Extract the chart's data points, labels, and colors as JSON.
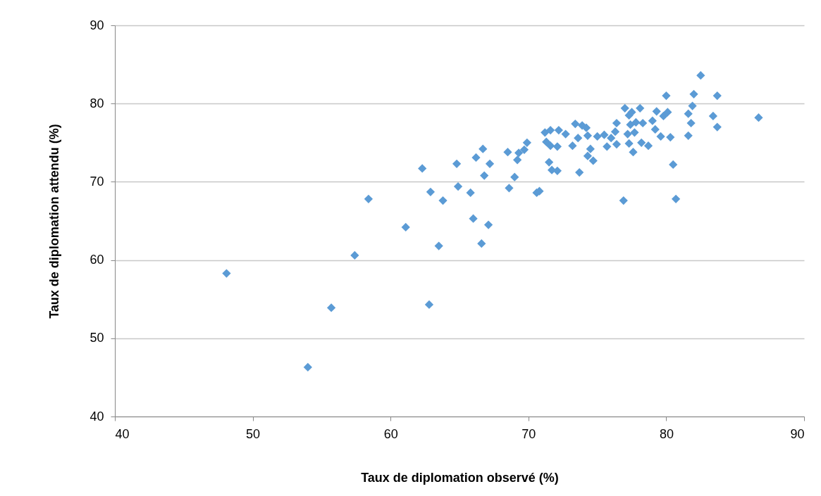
{
  "chart_data": {
    "type": "scatter",
    "xlabel": "Taux de diplomation observé (%)",
    "ylabel": "Taux de diplomation attendu  (%)",
    "xlim": [
      40,
      90
    ],
    "xticks": [
      40,
      50,
      60,
      70,
      80,
      90
    ],
    "ylim": [
      40,
      90
    ],
    "yticks": [
      40,
      50,
      60,
      70,
      80,
      90
    ],
    "grid": "y",
    "marker": "diamond",
    "series": [
      {
        "color": "#5b9bd5",
        "x": [
          48.1,
          54.0,
          55.7,
          57.4,
          58.4,
          61.1,
          62.3,
          62.8,
          62.9,
          63.5,
          63.8,
          64.8,
          64.9,
          65.8,
          66.0,
          66.2,
          66.6,
          66.7,
          66.8,
          67.1,
          67.2,
          68.5,
          68.6,
          69.0,
          69.2,
          69.3,
          69.7,
          69.9,
          70.6,
          70.8,
          71.2,
          71.3,
          71.5,
          71.6,
          71.6,
          71.7,
          72.1,
          72.1,
          72.2,
          72.7,
          73.2,
          73.4,
          73.6,
          73.7,
          73.9,
          74.2,
          74.3,
          74.3,
          74.5,
          74.7,
          75.0,
          75.5,
          75.7,
          76.0,
          76.3,
          76.4,
          76.4,
          76.9,
          77.0,
          77.2,
          77.3,
          77.3,
          77.4,
          77.5,
          77.6,
          77.7,
          77.8,
          78.1,
          78.2,
          78.3,
          78.7,
          79.0,
          79.2,
          79.3,
          79.6,
          79.8,
          80.0,
          80.1,
          80.3,
          80.5,
          80.7,
          81.6,
          81.6,
          81.8,
          81.9,
          82.0,
          82.5,
          83.4,
          83.7,
          83.7,
          86.7
        ],
        "values": [
          58.3,
          46.3,
          53.9,
          60.6,
          67.8,
          64.2,
          71.7,
          54.3,
          68.7,
          61.8,
          67.6,
          72.3,
          69.4,
          68.6,
          65.3,
          73.1,
          62.1,
          74.2,
          70.8,
          64.5,
          72.3,
          73.8,
          69.2,
          70.6,
          72.8,
          73.7,
          74.1,
          75.0,
          68.6,
          68.8,
          76.3,
          75.1,
          72.5,
          74.6,
          76.6,
          71.5,
          71.4,
          74.5,
          76.6,
          76.1,
          74.6,
          77.4,
          75.6,
          71.2,
          77.2,
          76.9,
          73.3,
          75.9,
          74.2,
          72.7,
          75.8,
          76.0,
          74.5,
          75.6,
          76.4,
          74.8,
          77.5,
          67.6,
          79.4,
          76.1,
          74.9,
          78.5,
          77.3,
          78.9,
          73.8,
          76.3,
          77.6,
          79.4,
          75.0,
          77.5,
          74.6,
          77.8,
          76.7,
          79.0,
          75.8,
          78.4,
          81.0,
          78.9,
          75.7,
          72.2,
          67.8,
          75.9,
          78.7,
          77.5,
          79.7,
          81.2,
          83.6,
          78.4,
          81.0,
          77.0,
          78.2
        ]
      }
    ]
  }
}
